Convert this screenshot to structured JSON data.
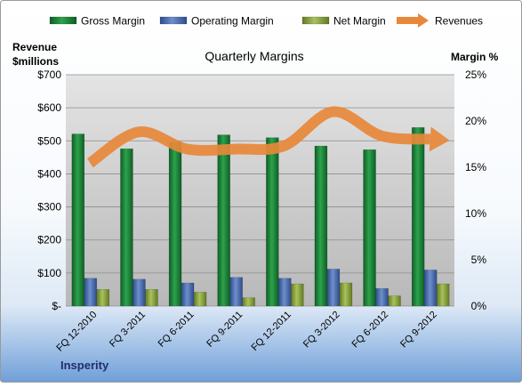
{
  "chart_data": {
    "type": "bar",
    "title": "Quarterly Margins",
    "left_axis_title": [
      "Revenue",
      "$millions"
    ],
    "right_axis_title": "Margin %",
    "footer_label": "Insperity",
    "categories": [
      "FQ 12-2010",
      "FQ 3-2011",
      "FQ 6-2011",
      "FQ 9-2011",
      "FQ 12-2011",
      "FQ 3-2012",
      "FQ 6-2012",
      "FQ 9-2012"
    ],
    "left_axis": {
      "ylim": [
        0,
        700
      ],
      "ticks": [
        0,
        100,
        200,
        300,
        400,
        500,
        600,
        700
      ],
      "tick_labels": [
        "$-",
        "$100",
        "$200",
        "$300",
        "$400",
        "$500",
        "$600",
        "$700"
      ]
    },
    "right_axis": {
      "ylim": [
        0,
        25
      ],
      "ticks": [
        0,
        5,
        10,
        15,
        20,
        25
      ],
      "tick_labels": [
        "0%",
        "5%",
        "10%",
        "15%",
        "20%",
        "25%"
      ]
    },
    "series": [
      {
        "name": "Gross Margin",
        "kind": "bar",
        "axis": "right",
        "color": "#1E8B3E",
        "values": [
          18.6,
          17.0,
          17.7,
          18.5,
          18.2,
          17.3,
          16.9,
          19.3
        ]
      },
      {
        "name": "Operating Margin",
        "kind": "bar",
        "axis": "right",
        "color": "#4F6FB0",
        "values": [
          3.0,
          2.9,
          2.5,
          3.1,
          3.0,
          4.0,
          1.9,
          3.9
        ]
      },
      {
        "name": "Net Margin",
        "kind": "bar",
        "axis": "right",
        "color": "#8DA642",
        "values": [
          1.8,
          1.8,
          1.5,
          0.9,
          2.4,
          2.5,
          1.1,
          2.4
        ]
      },
      {
        "name": "Revenues",
        "kind": "line",
        "axis": "left",
        "color": "#E8883A",
        "values": [
          433,
          527,
          475,
          475,
          485,
          588,
          515,
          505
        ]
      }
    ],
    "grid": true,
    "legend": "top"
  }
}
